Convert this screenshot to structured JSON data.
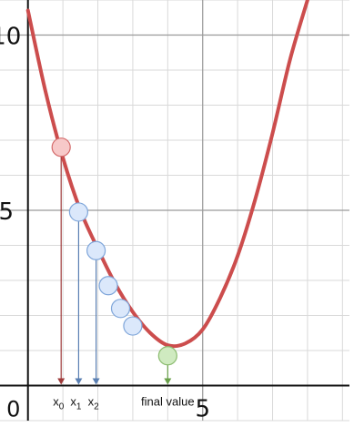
{
  "chart_data": {
    "type": "line",
    "title": "",
    "xlabel": "",
    "ylabel": "",
    "xlim": [
      -0.8,
      9.2
    ],
    "ylim": [
      -1.0,
      11.0
    ],
    "grid": true,
    "axes": {
      "y_major_ticks": [
        5,
        10
      ],
      "y_major_tick_labels": [
        "5",
        "10"
      ],
      "x_major_ticks": [
        5
      ],
      "x_major_tick_labels": [
        "5"
      ],
      "origin_label": "0"
    },
    "curve": {
      "color": "#cc4d4d",
      "points": [
        {
          "x": 0.0,
          "y": 10.7
        },
        {
          "x": 0.5,
          "y": 8.4
        },
        {
          "x": 1.0,
          "y": 6.5
        },
        {
          "x": 1.5,
          "y": 5.0
        },
        {
          "x": 2.0,
          "y": 3.9
        },
        {
          "x": 2.5,
          "y": 2.9
        },
        {
          "x": 3.0,
          "y": 2.1
        },
        {
          "x": 3.5,
          "y": 1.5
        },
        {
          "x": 4.0,
          "y": 1.15
        },
        {
          "x": 4.5,
          "y": 1.2
        },
        {
          "x": 5.0,
          "y": 1.6
        },
        {
          "x": 5.5,
          "y": 2.5
        },
        {
          "x": 6.0,
          "y": 3.7
        },
        {
          "x": 6.5,
          "y": 5.3
        },
        {
          "x": 7.0,
          "y": 7.2
        },
        {
          "x": 7.5,
          "y": 9.3
        },
        {
          "x": 8.0,
          "y": 11.0
        }
      ]
    },
    "iterates": [
      {
        "x": 0.95,
        "y": 6.8,
        "kind": "start",
        "fill": "#f7c9c9",
        "stroke": "#d46a6a",
        "drop_color": "#9e3a3a"
      },
      {
        "x": 1.45,
        "y": 4.95,
        "kind": "step",
        "fill": "#dbe8fb",
        "stroke": "#7fa6da",
        "drop_color": "#5a7fb2"
      },
      {
        "x": 1.95,
        "y": 3.85,
        "kind": "step",
        "fill": "#dbe8fb",
        "stroke": "#7fa6da",
        "drop_color": "#5a7fb2"
      },
      {
        "x": 2.3,
        "y": 2.85,
        "kind": "step",
        "fill": "#dbe8fb",
        "stroke": "#7fa6da",
        "drop_color": null
      },
      {
        "x": 2.65,
        "y": 2.2,
        "kind": "step",
        "fill": "#dbe8fb",
        "stroke": "#7fa6da",
        "drop_color": null
      },
      {
        "x": 3.0,
        "y": 1.7,
        "kind": "step",
        "fill": "#dbe8fb",
        "stroke": "#7fa6da",
        "drop_color": null
      },
      {
        "x": 4.0,
        "y": 0.85,
        "kind": "final",
        "fill": "#cfeac0",
        "stroke": "#8cbc70",
        "drop_color": "#6aa04a"
      }
    ],
    "annotations": [
      {
        "text": "x",
        "sub": "0",
        "at_x": 0.95
      },
      {
        "text": "x",
        "sub": "1",
        "at_x": 1.45
      },
      {
        "text": "x",
        "sub": "2",
        "at_x": 1.95
      },
      {
        "text": "final value",
        "sub": "",
        "at_x": 4.0
      }
    ]
  }
}
